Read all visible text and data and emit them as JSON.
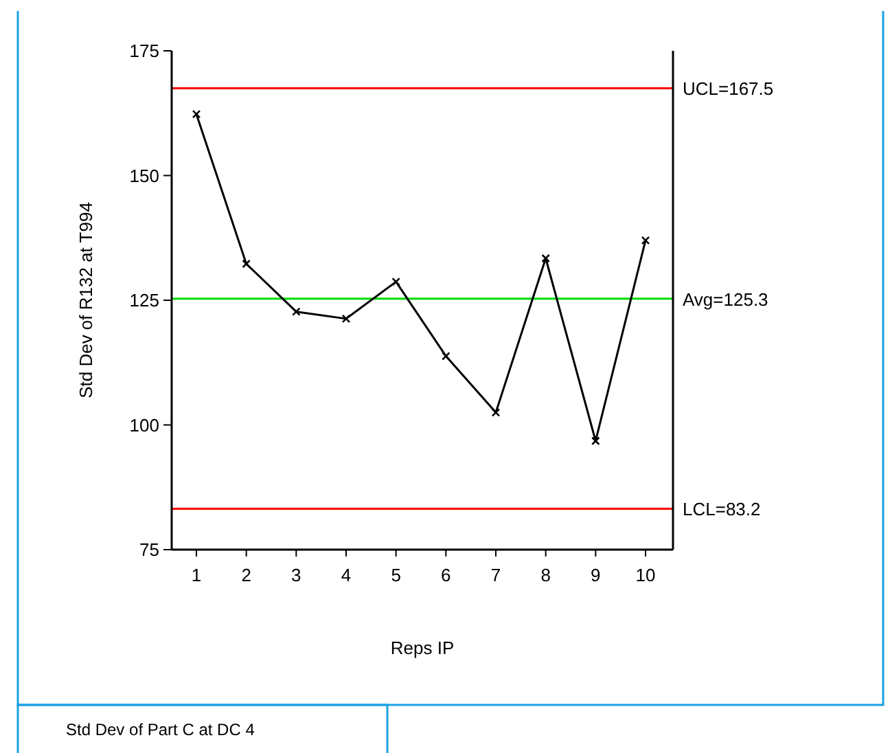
{
  "chart_data": {
    "type": "line",
    "xlabel": "Reps IP",
    "ylabel": "Std Dev of R132 at T994",
    "categories": [
      "1",
      "2",
      "3",
      "4",
      "5",
      "6",
      "7",
      "8",
      "9",
      "10"
    ],
    "series": [
      {
        "color": "#000000",
        "values": [
          162.3,
          132.3,
          122.7,
          121.3,
          128.7,
          113.8,
          102.5,
          133.4,
          96.8,
          137
        ]
      }
    ],
    "ylim": [
      75,
      175
    ],
    "yticks": [
      75,
      100,
      125,
      150,
      175
    ],
    "grid": false,
    "marker": "cross",
    "line_style": "solid",
    "ref_lines": [
      {
        "axis": "y",
        "value": 167.5,
        "label": "UCL=167.5",
        "color": "#ff0000"
      },
      {
        "axis": "y",
        "value": 125.3,
        "label": "Avg=125.3",
        "color": "#00dd00"
      },
      {
        "axis": "y",
        "value": 83.2,
        "label": "LCL=83.2",
        "color": "#ff0000"
      }
    ],
    "annotations": [
      "Std Dev of Part C at DC 4"
    ]
  }
}
